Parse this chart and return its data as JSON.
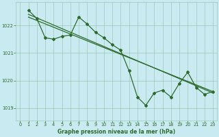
{
  "title": "Graphe pression niveau de la mer (hPa)",
  "background_color": "#c8eaf0",
  "grid_color": "#9ec8b4",
  "line_color": "#2d6b2d",
  "text_color": "#2d6b2d",
  "xlim": [
    -0.5,
    23.5
  ],
  "ylim": [
    1018.55,
    1022.85
  ],
  "yticks": [
    1019,
    1020,
    1021,
    1022
  ],
  "xticks": [
    0,
    1,
    2,
    3,
    4,
    5,
    6,
    7,
    8,
    9,
    10,
    11,
    12,
    13,
    14,
    15,
    16,
    17,
    18,
    19,
    20,
    21,
    22,
    23
  ],
  "series1": {
    "x": [
      1,
      2,
      3,
      4,
      5,
      6,
      7,
      8,
      9,
      10,
      11,
      12,
      13,
      14,
      15,
      16,
      17,
      18,
      19,
      20,
      21,
      22,
      23
    ],
    "y": [
      1022.55,
      1022.25,
      1021.55,
      1021.5,
      1021.6,
      1021.65,
      1022.3,
      1022.05,
      1021.75,
      1021.55,
      1021.3,
      1021.1,
      1020.35,
      1019.4,
      1019.1,
      1019.55,
      1019.65,
      1019.4,
      1019.9,
      1020.3,
      1019.75,
      1019.5,
      1019.6
    ]
  },
  "series2": {
    "x": [
      1,
      23
    ],
    "y": [
      1022.4,
      1019.55
    ]
  },
  "series3": {
    "x": [
      1,
      23
    ],
    "y": [
      1022.3,
      1019.6
    ]
  },
  "marker_size": 2.0,
  "linewidth": 0.9
}
